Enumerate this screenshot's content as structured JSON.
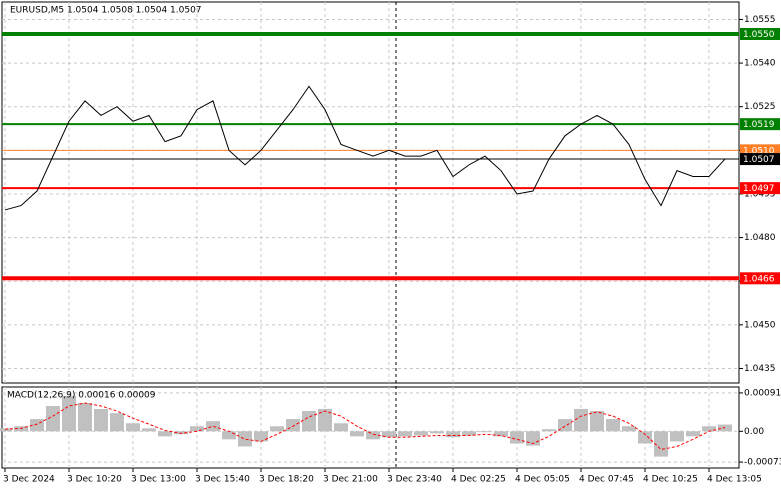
{
  "chart_data": [
    {
      "type": "line",
      "title": "EURUSD,M5  1.0504 1.0508 1.0504 1.0507",
      "color": "#000000",
      "grid": true,
      "categories": [
        "3 Dec 2024",
        null,
        null,
        null,
        "3 Dec 10:20",
        null,
        null,
        null,
        "3 Dec 13:00",
        null,
        null,
        null,
        "3 Dec 15:40",
        null,
        null,
        null,
        "3 Dec 18:20",
        null,
        null,
        null,
        "3 Dec 21:00",
        null,
        null,
        null,
        "3 Dec 23:40",
        null,
        null,
        null,
        "4 Dec 02:25",
        null,
        null,
        null,
        "4 Dec 05:05",
        null,
        null,
        null,
        "4 Dec 07:45",
        null,
        null,
        null,
        "4 Dec 10:25",
        null,
        null,
        null,
        "4 Dec 13:05",
        null
      ],
      "values": [
        1.04895,
        1.0491,
        1.0496,
        1.0508,
        1.052,
        1.0527,
        1.0522,
        1.0525,
        1.052,
        1.0522,
        1.0513,
        1.0515,
        1.0524,
        1.0527,
        1.051,
        1.0505,
        1.051,
        1.0517,
        1.0524,
        1.0532,
        1.0524,
        1.0512,
        1.051,
        1.0508,
        1.051,
        1.0508,
        1.0508,
        1.051,
        1.0501,
        1.0505,
        1.0508,
        1.0503,
        1.0495,
        1.0496,
        1.0507,
        1.0515,
        1.0519,
        1.0522,
        1.0519,
        1.0512,
        1.05,
        1.0491,
        1.0503,
        1.0501,
        1.0501,
        1.0507
      ],
      "ylim": [
        1.043,
        1.0561
      ],
      "yticks": [
        1.0555,
        {
          "value": 1.054,
          "label": "1.0540"
        },
        1.0525,
        {
          "value": 1.051,
          "label": "1.0510"
        },
        1.0495,
        {
          "value": 1.048,
          "label": "1.0480"
        },
        1.0465,
        {
          "value": 1.045,
          "label": "1.0450"
        },
        1.0435
      ],
      "levels": [
        {
          "value": 1.055,
          "label": "1.0550",
          "color": "#008000",
          "width": 4
        },
        {
          "value": 1.0519,
          "label": "1.0519",
          "color": "#008000",
          "width": 2
        },
        {
          "value": 1.051,
          "label": "1.0510",
          "color": "#ff7f27",
          "width": 1
        },
        {
          "value": 1.0507,
          "label": "1.0507",
          "color": "#000000",
          "width": 1
        },
        {
          "value": 1.0497,
          "label": "1.0497",
          "color": "#ff0000",
          "width": 2
        },
        {
          "value": 1.0466,
          "label": "1.0466",
          "color": "#ff0000",
          "width": 4
        }
      ]
    },
    {
      "type": "macd",
      "title": "MACD(12,26,9) 0.00016 0.00009",
      "grid": true,
      "series": [
        {
          "color": "#c0c0c0",
          "values": [
            7e-05,
            0.00012,
            0.00029,
            0.0006,
            0.00084,
            0.00067,
            0.00053,
            0.00043,
            0.00019,
            7e-05,
            -0.00012,
            -7e-05,
            0.00012,
            0.00024,
            -0.00019,
            -0.00036,
            -0.00024,
            0.00012,
            0.00029,
            0.00048,
            0.00053,
            0.00019,
            -0.00012,
            -0.00019,
            -0.00014,
            -0.00012,
            -0.0001,
            -5e-05,
            -0.00014,
            -0.0001,
            -2e-05,
            -0.00012,
            -0.00029,
            -0.00034,
            5e-05,
            0.00029,
            0.00053,
            0.00048,
            0.00029,
            0.00012,
            -0.00029,
            -0.0006,
            -0.00024,
            -0.00012,
            0.00012,
            0.00016
          ]
        },
        {
          "color": "#ff0000",
          "values": [
            5e-05,
            7e-05,
            0.00017,
            0.00036,
            0.0006,
            0.00067,
            0.0006,
            0.00048,
            0.00031,
            0.00017,
            2e-05,
            -5e-05,
            0,
            0.00012,
            0,
            -0.00019,
            -0.00024,
            -7e-05,
            0.00012,
            0.00034,
            0.00048,
            0.00036,
            0.00012,
            -7e-05,
            -0.00014,
            -0.00014,
            -0.00012,
            -0.0001,
            -0.0001,
            -0.0001,
            -7e-05,
            -0.0001,
            -0.00019,
            -0.00029,
            -0.00012,
            0.00012,
            0.00036,
            0.00046,
            0.00036,
            0.00019,
            -7e-05,
            -0.00043,
            -0.00036,
            -0.00019,
            0,
            9e-05
          ]
        }
      ],
      "ylim": [
        -0.00087,
        0.00105
      ],
      "yticks": [
        0.00091,
        {
          "value": 0,
          "label": "0.00"
        },
        -0.00073
      ]
    }
  ]
}
